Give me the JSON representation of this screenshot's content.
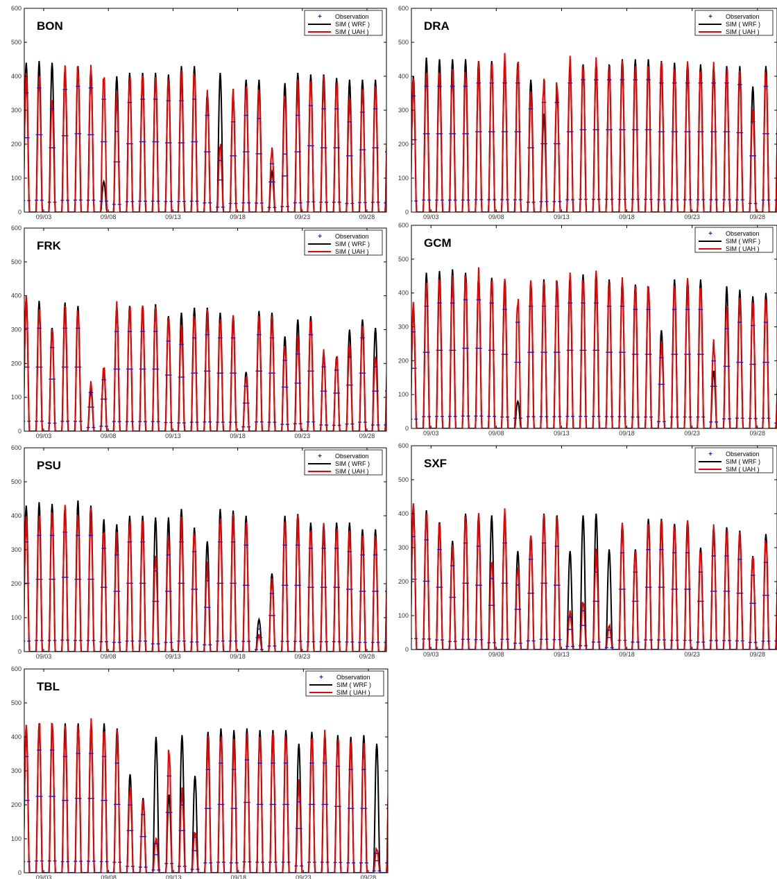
{
  "legend_labels": [
    "Observation",
    "SIM ( WRF )",
    "SIM ( UAH )"
  ],
  "colors": {
    "observation": "#1a1acc",
    "wrf": "#000000",
    "uah": "#ee0000",
    "axis": "#000000"
  },
  "chart_data": [
    {
      "type": "line",
      "title": "BON",
      "x_ticks": [
        "09/03",
        "09/08",
        "09/13",
        "09/18",
        "09/23",
        "09/28"
      ],
      "ylim": [
        0,
        600
      ],
      "y_ticks": [
        "0",
        "100",
        "200",
        "300",
        "400",
        "500",
        "600"
      ],
      "x_range_days": [
        1.5,
        29.5
      ],
      "legend": "top-right",
      "series": [
        {
          "name": "SIM ( WRF )",
          "daily_peak": [
            440,
            445,
            440,
            420,
            430,
            420,
            90,
            400,
            410,
            410,
            410,
            405,
            430,
            430,
            350,
            410,
            340,
            390,
            390,
            120,
            380,
            410,
            405,
            405,
            395,
            390,
            390,
            390,
            370,
            375
          ]
        },
        {
          "name": "SIM ( UAH )",
          "daily_peak": [
            395,
            400,
            330,
            420,
            425,
            410,
            400,
            340,
            395,
            395,
            395,
            390,
            400,
            410,
            340,
            200,
            350,
            370,
            360,
            185,
            340,
            370,
            390,
            380,
            380,
            330,
            360,
            370,
            340,
            335
          ]
        },
        {
          "name": "Observation",
          "daily_peak": [
            370,
            385,
            320,
            380,
            390,
            385,
            350,
            250,
            340,
            350,
            350,
            345,
            345,
            350,
            300,
            160,
            280,
            300,
            290,
            150,
            180,
            300,
            330,
            320,
            320,
            280,
            310,
            320,
            300,
            290
          ]
        }
      ]
    },
    {
      "type": "line",
      "title": "DRA",
      "x_ticks": [
        "09/03",
        "09/08",
        "09/13",
        "09/18",
        "09/23",
        "09/28"
      ],
      "ylim": [
        0,
        600
      ],
      "y_ticks": [
        "0",
        "100",
        "200",
        "300",
        "400",
        "500",
        "600"
      ],
      "x_range_days": [
        1.5,
        29.5
      ],
      "legend": "top-right",
      "series": [
        {
          "name": "SIM ( WRF )",
          "daily_peak": [
            400,
            455,
            450,
            450,
            450,
            445,
            445,
            445,
            440,
            390,
            290,
            360,
            440,
            435,
            440,
            435,
            450,
            450,
            450,
            445,
            440,
            440,
            435,
            430,
            430,
            430,
            370,
            430,
            430,
            425
          ]
        },
        {
          "name": "SIM ( UAH )",
          "daily_peak": [
            380,
            410,
            410,
            410,
            410,
            420,
            440,
            445,
            440,
            350,
            390,
            380,
            440,
            430,
            430,
            430,
            430,
            430,
            430,
            430,
            420,
            420,
            420,
            420,
            420,
            410,
            300,
            410,
            410,
            410
          ]
        },
        {
          "name": "Observation",
          "daily_peak": [
            360,
            390,
            390,
            390,
            390,
            400,
            400,
            400,
            400,
            320,
            340,
            340,
            400,
            410,
            410,
            410,
            410,
            410,
            410,
            400,
            400,
            400,
            400,
            400,
            400,
            395,
            280,
            390,
            390,
            270
          ]
        }
      ]
    },
    {
      "type": "line",
      "title": "FRK",
      "x_ticks": [
        "09/03",
        "09/08",
        "09/13",
        "09/18",
        "09/23",
        "09/28"
      ],
      "ylim": [
        0,
        600
      ],
      "y_ticks": [
        "0",
        "100",
        "200",
        "300",
        "400",
        "500",
        "600"
      ],
      "x_range_days": [
        1.5,
        29.5
      ],
      "legend": "top-right",
      "series": [
        {
          "name": "SIM ( WRF )",
          "daily_peak": [
            395,
            385,
            305,
            380,
            370,
            120,
            180,
            370,
            370,
            370,
            375,
            340,
            350,
            365,
            365,
            350,
            340,
            175,
            355,
            350,
            280,
            330,
            340,
            230,
            220,
            300,
            330,
            305,
            300,
            300
          ]
        },
        {
          "name": "SIM ( UAH )",
          "daily_peak": [
            385,
            360,
            300,
            360,
            355,
            140,
            190,
            365,
            365,
            365,
            365,
            335,
            300,
            340,
            340,
            330,
            330,
            160,
            340,
            330,
            250,
            270,
            330,
            230,
            220,
            250,
            310,
            220,
            230,
            230
          ]
        },
        {
          "name": "Observation",
          "daily_peak": [
            320,
            320,
            260,
            320,
            320,
            120,
            160,
            310,
            310,
            310,
            310,
            280,
            270,
            290,
            300,
            290,
            290,
            140,
            300,
            290,
            220,
            240,
            300,
            200,
            190,
            230,
            290,
            200,
            200,
            200
          ]
        }
      ]
    },
    {
      "type": "line",
      "title": "GCM",
      "x_ticks": [
        "09/03",
        "09/08",
        "09/13",
        "09/18",
        "09/23",
        "09/28"
      ],
      "ylim": [
        0,
        600
      ],
      "y_ticks": [
        "0",
        "100",
        "200",
        "300",
        "400",
        "500",
        "600"
      ],
      "x_range_days": [
        1.5,
        29.5
      ],
      "legend": "top-right",
      "series": [
        {
          "name": "SIM ( WRF )",
          "daily_peak": [
            360,
            460,
            465,
            470,
            460,
            450,
            445,
            440,
            80,
            430,
            440,
            435,
            450,
            455,
            460,
            440,
            435,
            425,
            420,
            290,
            440,
            440,
            440,
            170,
            420,
            410,
            390,
            400,
            200,
            80
          ]
        },
        {
          "name": "SIM ( UAH )",
          "daily_peak": [
            360,
            430,
            440,
            440,
            450,
            450,
            440,
            420,
            380,
            430,
            430,
            435,
            440,
            440,
            440,
            430,
            430,
            420,
            420,
            250,
            420,
            420,
            420,
            250,
            360,
            380,
            370,
            380,
            200,
            60
          ]
        },
        {
          "name": "Observation",
          "daily_peak": [
            300,
            380,
            390,
            390,
            400,
            400,
            390,
            370,
            330,
            380,
            380,
            380,
            390,
            390,
            390,
            380,
            380,
            370,
            370,
            220,
            370,
            370,
            370,
            210,
            310,
            330,
            320,
            330,
            170,
            60
          ]
        }
      ]
    },
    {
      "type": "line",
      "title": "PSU",
      "x_ticks": [
        "09/03",
        "09/08",
        "09/13",
        "09/18",
        "09/23",
        "09/28"
      ],
      "ylim": [
        0,
        600
      ],
      "y_ticks": [
        "0",
        "100",
        "200",
        "300",
        "400",
        "500",
        "600"
      ],
      "x_range_days": [
        1.5,
        29.5
      ],
      "legend": "top-right",
      "series": [
        {
          "name": "SIM ( WRF )",
          "daily_peak": [
            430,
            440,
            435,
            425,
            445,
            430,
            390,
            375,
            400,
            400,
            395,
            395,
            420,
            365,
            325,
            420,
            415,
            400,
            95,
            230,
            400,
            405,
            380,
            375,
            380,
            380,
            360,
            360,
            360,
            360
          ]
        },
        {
          "name": "SIM ( UAH )",
          "daily_peak": [
            385,
            400,
            410,
            420,
            400,
            400,
            355,
            335,
            380,
            380,
            280,
            340,
            380,
            350,
            250,
            390,
            390,
            380,
            50,
            210,
            380,
            380,
            360,
            360,
            360,
            350,
            340,
            340,
            340,
            340
          ]
        },
        {
          "name": "Observation",
          "daily_peak": [
            340,
            360,
            360,
            370,
            360,
            360,
            320,
            300,
            340,
            340,
            250,
            300,
            340,
            310,
            220,
            340,
            340,
            330,
            70,
            180,
            330,
            330,
            320,
            320,
            320,
            310,
            300,
            300,
            300,
            300
          ]
        }
      ]
    },
    {
      "type": "line",
      "title": "SXF",
      "x_ticks": [
        "09/03",
        "09/08",
        "09/13",
        "09/18",
        "09/23",
        "09/28"
      ],
      "ylim": [
        0,
        600
      ],
      "y_ticks": [
        "0",
        "100",
        "200",
        "300",
        "400",
        "500",
        "600"
      ],
      "x_range_days": [
        1.5,
        29.5
      ],
      "legend": "top-right",
      "series": [
        {
          "name": "SIM ( WRF )",
          "daily_peak": [
            425,
            410,
            375,
            320,
            400,
            395,
            395,
            400,
            290,
            335,
            400,
            395,
            290,
            395,
            400,
            295,
            370,
            295,
            385,
            385,
            370,
            380,
            300,
            360,
            360,
            350,
            275,
            340,
            355,
            355
          ]
        },
        {
          "name": "SIM ( UAH )",
          "daily_peak": [
            415,
            400,
            370,
            300,
            390,
            380,
            260,
            395,
            240,
            330,
            395,
            390,
            110,
            140,
            280,
            70,
            360,
            290,
            370,
            370,
            360,
            360,
            290,
            350,
            350,
            340,
            270,
            320,
            340,
            340
          ]
        },
        {
          "name": "Observation",
          "daily_peak": [
            350,
            340,
            310,
            260,
            330,
            320,
            220,
            330,
            200,
            280,
            330,
            320,
            100,
            120,
            240,
            60,
            300,
            240,
            310,
            310,
            300,
            300,
            240,
            290,
            290,
            280,
            230,
            270,
            280,
            280
          ]
        }
      ]
    },
    {
      "type": "line",
      "title": "TBL",
      "x_ticks": [
        "09/03",
        "09/08",
        "09/13",
        "09/18",
        "09/23",
        "09/28"
      ],
      "ylim": [
        0,
        600
      ],
      "y_ticks": [
        "0",
        "100",
        "200",
        "300",
        "400",
        "500",
        "600"
      ],
      "x_range_days": [
        1.5,
        29.5
      ],
      "legend": "top-right",
      "series": [
        {
          "name": "SIM ( WRF )",
          "daily_peak": [
            430,
            440,
            440,
            440,
            440,
            440,
            440,
            425,
            290,
            220,
            400,
            230,
            405,
            285,
            415,
            425,
            420,
            425,
            420,
            420,
            420,
            380,
            415,
            410,
            405,
            400,
            405,
            380,
            400,
            400
          ]
        },
        {
          "name": "SIM ( UAH )",
          "daily_peak": [
            420,
            440,
            440,
            420,
            430,
            430,
            420,
            400,
            250,
            210,
            100,
            360,
            240,
            120,
            380,
            400,
            380,
            410,
            400,
            400,
            400,
            260,
            400,
            400,
            390,
            380,
            380,
            70,
            380,
            380
          ]
        },
        {
          "name": "Observation",
          "daily_peak": [
            360,
            380,
            380,
            360,
            370,
            370,
            360,
            340,
            210,
            180,
            90,
            300,
            210,
            110,
            320,
            340,
            320,
            350,
            340,
            340,
            340,
            220,
            340,
            340,
            330,
            320,
            320,
            60,
            320,
            320
          ]
        }
      ]
    }
  ]
}
